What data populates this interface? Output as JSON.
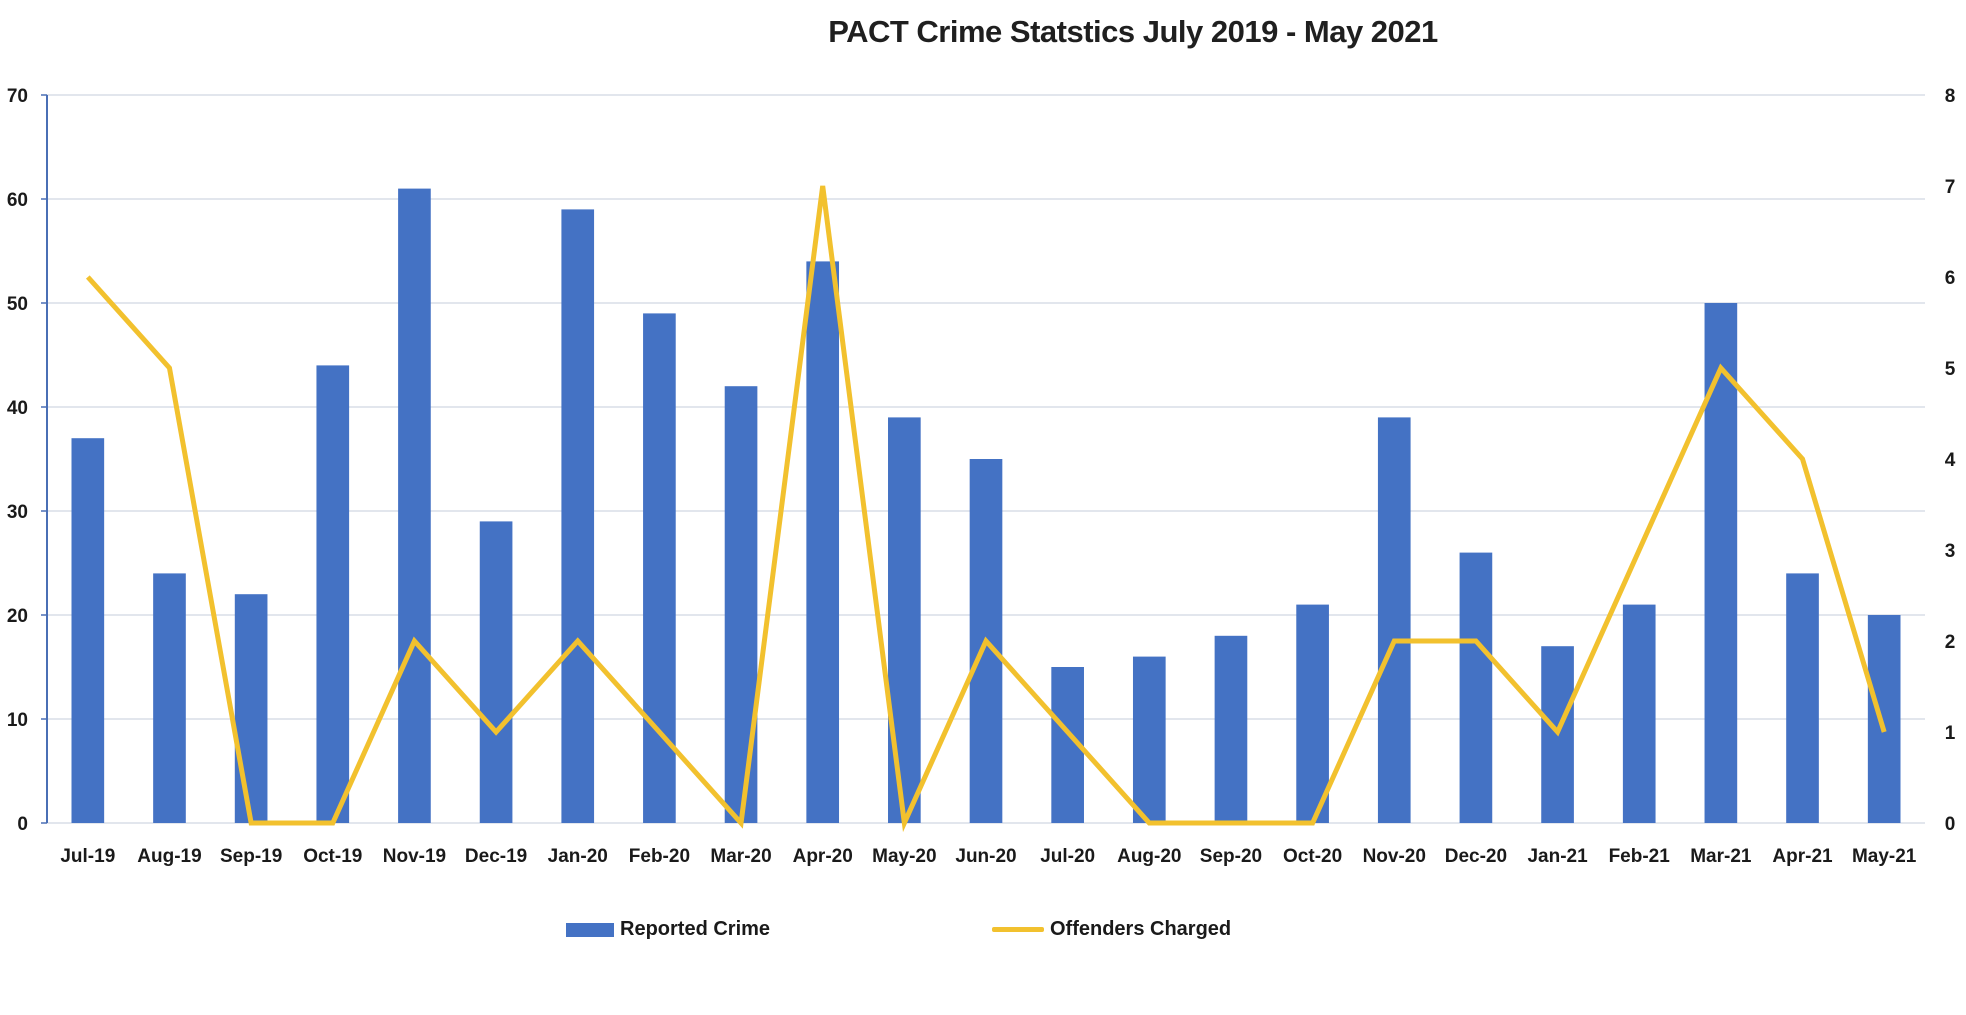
{
  "chart": {
    "title": "PACT Crime Statstics July 2019 - May 2021",
    "colors": {
      "bars": "#4472C4",
      "line": "#F2C12E",
      "grid": "#D9DEE7",
      "axis": "#4A6FB5"
    }
  },
  "legend": {
    "items": [
      {
        "label": "Reported Crime",
        "type": "bar"
      },
      {
        "label": "Offenders Charged",
        "type": "line"
      }
    ]
  },
  "chart_data": {
    "type": "bar+line",
    "title": "PACT Crime Statstics July 2019 - May 2021",
    "xlabel": "",
    "ylabel": "",
    "categories": [
      "Jul-19",
      "Aug-19",
      "Sep-19",
      "Oct-19",
      "Nov-19",
      "Dec-19",
      "Jan-20",
      "Feb-20",
      "Mar-20",
      "Apr-20",
      "May-20",
      "Jun-20",
      "Jul-20",
      "Aug-20",
      "Sep-20",
      "Oct-20",
      "Nov-20",
      "Dec-20",
      "Jan-21",
      "Feb-21",
      "Mar-21",
      "Apr-21",
      "May-21"
    ],
    "series": [
      {
        "name": "Reported Crime",
        "type": "bar",
        "axis": "left",
        "values": [
          37,
          24,
          22,
          44,
          61,
          29,
          59,
          49,
          42,
          54,
          39,
          35,
          15,
          16,
          18,
          21,
          39,
          26,
          17,
          21,
          50,
          24,
          20
        ]
      },
      {
        "name": "Offenders Charged",
        "type": "line",
        "axis": "right",
        "values": [
          6,
          5,
          0,
          0,
          2,
          1,
          2,
          1,
          0,
          7,
          0,
          2,
          1,
          0,
          0,
          0,
          2,
          2,
          1,
          3,
          5,
          4,
          1
        ]
      }
    ],
    "y_left": {
      "ylim": [
        0,
        70
      ],
      "ticks": [
        0,
        10,
        20,
        30,
        40,
        50,
        60,
        70
      ]
    },
    "y_right": {
      "ylim": [
        0,
        8
      ],
      "ticks": [
        0,
        1,
        2,
        3,
        4,
        5,
        6,
        7,
        8
      ]
    },
    "grid": true,
    "legend_position": "bottom"
  }
}
